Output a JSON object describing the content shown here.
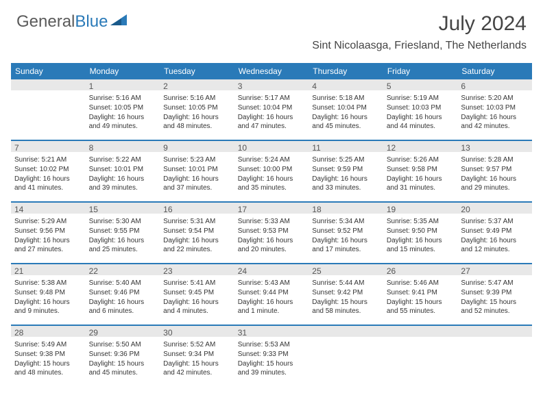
{
  "logo": {
    "text1": "General",
    "text2": "Blue"
  },
  "title": "July 2024",
  "location": "Sint Nicolaasga, Friesland, The Netherlands",
  "colors": {
    "header_bg": "#2a7ab8",
    "shade": "#e8e8e8",
    "text": "#333333"
  },
  "day_names": [
    "Sunday",
    "Monday",
    "Tuesday",
    "Wednesday",
    "Thursday",
    "Friday",
    "Saturday"
  ],
  "weeks": [
    [
      null,
      {
        "d": "1",
        "sr": "5:16 AM",
        "ss": "10:05 PM",
        "dl": "16 hours and 49 minutes."
      },
      {
        "d": "2",
        "sr": "5:16 AM",
        "ss": "10:05 PM",
        "dl": "16 hours and 48 minutes."
      },
      {
        "d": "3",
        "sr": "5:17 AM",
        "ss": "10:04 PM",
        "dl": "16 hours and 47 minutes."
      },
      {
        "d": "4",
        "sr": "5:18 AM",
        "ss": "10:04 PM",
        "dl": "16 hours and 45 minutes."
      },
      {
        "d": "5",
        "sr": "5:19 AM",
        "ss": "10:03 PM",
        "dl": "16 hours and 44 minutes."
      },
      {
        "d": "6",
        "sr": "5:20 AM",
        "ss": "10:03 PM",
        "dl": "16 hours and 42 minutes."
      }
    ],
    [
      {
        "d": "7",
        "sr": "5:21 AM",
        "ss": "10:02 PM",
        "dl": "16 hours and 41 minutes."
      },
      {
        "d": "8",
        "sr": "5:22 AM",
        "ss": "10:01 PM",
        "dl": "16 hours and 39 minutes."
      },
      {
        "d": "9",
        "sr": "5:23 AM",
        "ss": "10:01 PM",
        "dl": "16 hours and 37 minutes."
      },
      {
        "d": "10",
        "sr": "5:24 AM",
        "ss": "10:00 PM",
        "dl": "16 hours and 35 minutes."
      },
      {
        "d": "11",
        "sr": "5:25 AM",
        "ss": "9:59 PM",
        "dl": "16 hours and 33 minutes."
      },
      {
        "d": "12",
        "sr": "5:26 AM",
        "ss": "9:58 PM",
        "dl": "16 hours and 31 minutes."
      },
      {
        "d": "13",
        "sr": "5:28 AM",
        "ss": "9:57 PM",
        "dl": "16 hours and 29 minutes."
      }
    ],
    [
      {
        "d": "14",
        "sr": "5:29 AM",
        "ss": "9:56 PM",
        "dl": "16 hours and 27 minutes."
      },
      {
        "d": "15",
        "sr": "5:30 AM",
        "ss": "9:55 PM",
        "dl": "16 hours and 25 minutes."
      },
      {
        "d": "16",
        "sr": "5:31 AM",
        "ss": "9:54 PM",
        "dl": "16 hours and 22 minutes."
      },
      {
        "d": "17",
        "sr": "5:33 AM",
        "ss": "9:53 PM",
        "dl": "16 hours and 20 minutes."
      },
      {
        "d": "18",
        "sr": "5:34 AM",
        "ss": "9:52 PM",
        "dl": "16 hours and 17 minutes."
      },
      {
        "d": "19",
        "sr": "5:35 AM",
        "ss": "9:50 PM",
        "dl": "16 hours and 15 minutes."
      },
      {
        "d": "20",
        "sr": "5:37 AM",
        "ss": "9:49 PM",
        "dl": "16 hours and 12 minutes."
      }
    ],
    [
      {
        "d": "21",
        "sr": "5:38 AM",
        "ss": "9:48 PM",
        "dl": "16 hours and 9 minutes."
      },
      {
        "d": "22",
        "sr": "5:40 AM",
        "ss": "9:46 PM",
        "dl": "16 hours and 6 minutes."
      },
      {
        "d": "23",
        "sr": "5:41 AM",
        "ss": "9:45 PM",
        "dl": "16 hours and 4 minutes."
      },
      {
        "d": "24",
        "sr": "5:43 AM",
        "ss": "9:44 PM",
        "dl": "16 hours and 1 minute."
      },
      {
        "d": "25",
        "sr": "5:44 AM",
        "ss": "9:42 PM",
        "dl": "15 hours and 58 minutes."
      },
      {
        "d": "26",
        "sr": "5:46 AM",
        "ss": "9:41 PM",
        "dl": "15 hours and 55 minutes."
      },
      {
        "d": "27",
        "sr": "5:47 AM",
        "ss": "9:39 PM",
        "dl": "15 hours and 52 minutes."
      }
    ],
    [
      {
        "d": "28",
        "sr": "5:49 AM",
        "ss": "9:38 PM",
        "dl": "15 hours and 48 minutes."
      },
      {
        "d": "29",
        "sr": "5:50 AM",
        "ss": "9:36 PM",
        "dl": "15 hours and 45 minutes."
      },
      {
        "d": "30",
        "sr": "5:52 AM",
        "ss": "9:34 PM",
        "dl": "15 hours and 42 minutes."
      },
      {
        "d": "31",
        "sr": "5:53 AM",
        "ss": "9:33 PM",
        "dl": "15 hours and 39 minutes."
      },
      null,
      null,
      null
    ]
  ],
  "labels": {
    "sunrise": "Sunrise:",
    "sunset": "Sunset:",
    "daylight": "Daylight:"
  }
}
